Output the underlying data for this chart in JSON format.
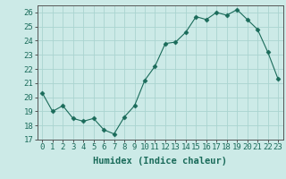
{
  "x": [
    0,
    1,
    2,
    3,
    4,
    5,
    6,
    7,
    8,
    9,
    10,
    11,
    12,
    13,
    14,
    15,
    16,
    17,
    18,
    19,
    20,
    21,
    22,
    23
  ],
  "y": [
    20.3,
    19.0,
    19.4,
    18.5,
    18.3,
    18.5,
    17.7,
    17.4,
    18.6,
    19.4,
    21.2,
    22.2,
    23.8,
    23.9,
    24.6,
    25.7,
    25.5,
    26.0,
    25.8,
    26.2,
    25.5,
    24.8,
    23.2,
    21.3
  ],
  "line_color": "#1a6b5a",
  "marker": "D",
  "marker_size": 2.5,
  "bg_color": "#cceae7",
  "grid_color": "#aad4d0",
  "xlabel": "Humidex (Indice chaleur)",
  "ylim": [
    17,
    26.5
  ],
  "xlim": [
    -0.5,
    23.5
  ],
  "yticks": [
    17,
    18,
    19,
    20,
    21,
    22,
    23,
    24,
    25,
    26
  ],
  "xtick_labels": [
    "0",
    "1",
    "2",
    "3",
    "4",
    "5",
    "6",
    "7",
    "8",
    "9",
    "10",
    "11",
    "12",
    "13",
    "14",
    "15",
    "16",
    "17",
    "18",
    "19",
    "20",
    "21",
    "22",
    "23"
  ],
  "label_fontsize": 7.5,
  "tick_fontsize": 6.5
}
